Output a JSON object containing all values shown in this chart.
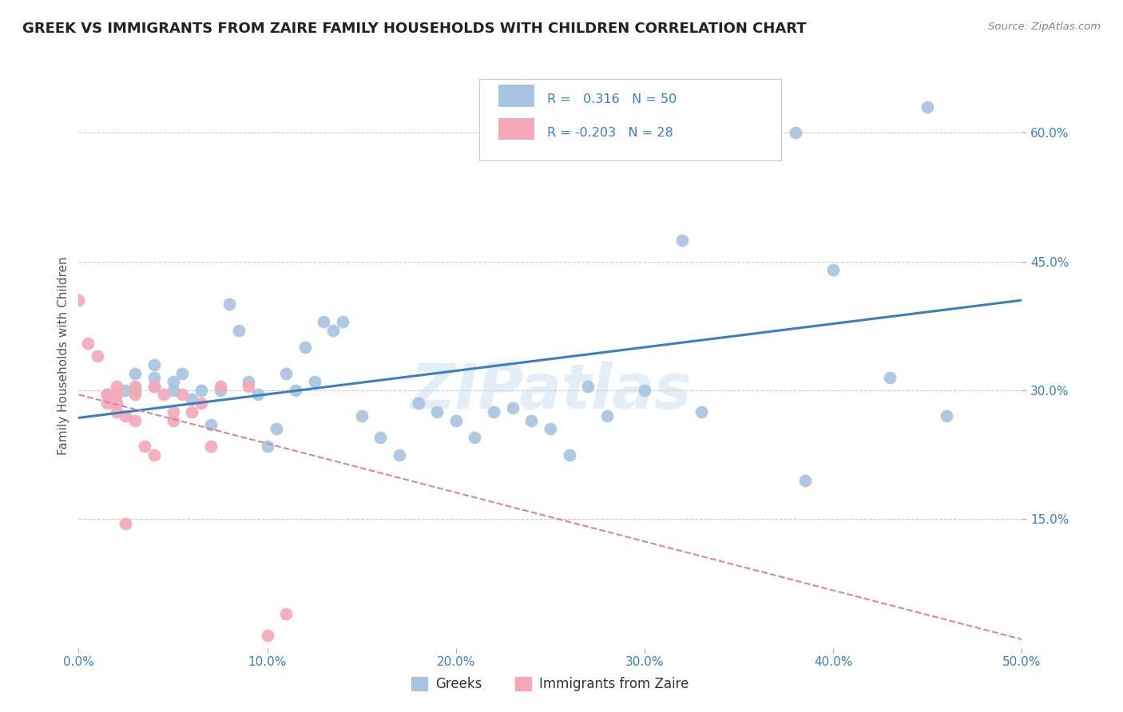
{
  "title": "GREEK VS IMMIGRANTS FROM ZAIRE FAMILY HOUSEHOLDS WITH CHILDREN CORRELATION CHART",
  "source": "Source: ZipAtlas.com",
  "ylabel": "Family Households with Children",
  "xlim": [
    0.0,
    0.5
  ],
  "ylim": [
    0.0,
    0.68
  ],
  "xtick_labels": [
    "0.0%",
    "10.0%",
    "20.0%",
    "30.0%",
    "40.0%",
    "50.0%"
  ],
  "xtick_vals": [
    0.0,
    0.1,
    0.2,
    0.3,
    0.4,
    0.5
  ],
  "ytick_labels": [
    "15.0%",
    "30.0%",
    "45.0%",
    "60.0%"
  ],
  "ytick_vals": [
    0.15,
    0.3,
    0.45,
    0.6
  ],
  "legend_labels": [
    "Greeks",
    "Immigrants from Zaire"
  ],
  "blue_color": "#a8c4e0",
  "pink_color": "#f4a8b8",
  "blue_line_color": "#3a7fc1",
  "pink_line_dashed_color": "#d4889a",
  "watermark": "ZIPatlas",
  "title_fontsize": 13,
  "axis_label_fontsize": 11,
  "tick_fontsize": 11,
  "legend_text_color": "#3a7fc1",
  "blue_scatter_x": [
    0.015,
    0.025,
    0.03,
    0.03,
    0.04,
    0.04,
    0.04,
    0.05,
    0.05,
    0.055,
    0.06,
    0.065,
    0.07,
    0.075,
    0.08,
    0.085,
    0.09,
    0.095,
    0.1,
    0.105,
    0.11,
    0.115,
    0.12,
    0.125,
    0.13,
    0.135,
    0.14,
    0.15,
    0.16,
    0.17,
    0.18,
    0.19,
    0.2,
    0.21,
    0.22,
    0.23,
    0.24,
    0.25,
    0.26,
    0.27,
    0.28,
    0.3,
    0.32,
    0.33,
    0.38,
    0.385,
    0.4,
    0.43,
    0.45,
    0.46
  ],
  "blue_scatter_y": [
    0.295,
    0.3,
    0.3,
    0.32,
    0.305,
    0.315,
    0.33,
    0.31,
    0.3,
    0.32,
    0.29,
    0.3,
    0.26,
    0.3,
    0.4,
    0.37,
    0.31,
    0.295,
    0.235,
    0.255,
    0.32,
    0.3,
    0.35,
    0.31,
    0.38,
    0.37,
    0.38,
    0.27,
    0.245,
    0.225,
    0.285,
    0.275,
    0.265,
    0.245,
    0.275,
    0.28,
    0.265,
    0.255,
    0.225,
    0.305,
    0.27,
    0.3,
    0.475,
    0.275,
    0.6,
    0.195,
    0.44,
    0.315,
    0.63,
    0.27
  ],
  "pink_scatter_x": [
    0.0,
    0.005,
    0.01,
    0.015,
    0.015,
    0.02,
    0.02,
    0.02,
    0.02,
    0.025,
    0.025,
    0.03,
    0.03,
    0.03,
    0.035,
    0.04,
    0.04,
    0.045,
    0.05,
    0.05,
    0.055,
    0.06,
    0.065,
    0.07,
    0.075,
    0.09,
    0.1,
    0.11
  ],
  "pink_scatter_y": [
    0.405,
    0.355,
    0.34,
    0.295,
    0.285,
    0.305,
    0.295,
    0.285,
    0.275,
    0.27,
    0.145,
    0.305,
    0.295,
    0.265,
    0.235,
    0.305,
    0.225,
    0.295,
    0.275,
    0.265,
    0.295,
    0.275,
    0.285,
    0.235,
    0.305,
    0.305,
    0.015,
    0.04
  ],
  "blue_line_x": [
    0.0,
    0.5
  ],
  "blue_line_y": [
    0.268,
    0.405
  ],
  "pink_line_x": [
    0.0,
    0.5
  ],
  "pink_line_y": [
    0.295,
    0.01
  ]
}
